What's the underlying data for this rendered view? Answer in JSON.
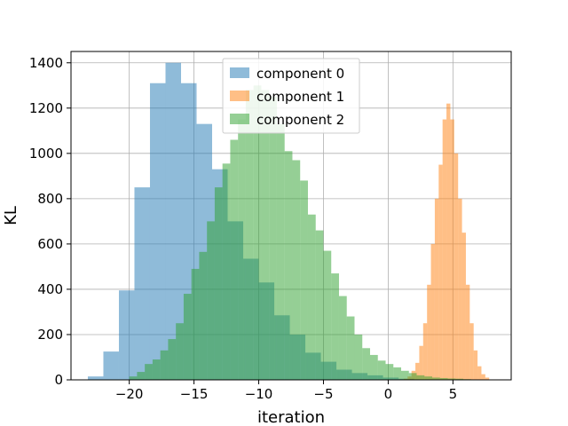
{
  "chart_data": {
    "type": "bar",
    "subtype": "histogram",
    "title": "",
    "xlabel": "iteration",
    "ylabel": "KL",
    "xlim": [
      -24.5,
      9.5
    ],
    "ylim": [
      0,
      1450
    ],
    "xticks": [
      -20,
      -15,
      -10,
      -5,
      0,
      5
    ],
    "yticks": [
      0,
      200,
      400,
      600,
      800,
      1000,
      1200,
      1400
    ],
    "grid": true,
    "legend_position": "top-center",
    "alpha": 0.5,
    "series": [
      {
        "name": "component 0",
        "color": "#1f77b4",
        "bin_start": -23.2,
        "bin_width": 1.2,
        "values": [
          15,
          125,
          395,
          850,
          1310,
          1400,
          1310,
          1130,
          930,
          700,
          535,
          430,
          285,
          200,
          120,
          80,
          45,
          30,
          20,
          10,
          5
        ]
      },
      {
        "name": "component 1",
        "color": "#ff7f0e",
        "bin_start": 1.2,
        "bin_width": 0.3,
        "values": [
          5,
          15,
          40,
          75,
          150,
          250,
          420,
          600,
          800,
          950,
          1150,
          1220,
          1150,
          1000,
          800,
          650,
          420,
          250,
          130,
          60,
          25,
          10
        ]
      },
      {
        "name": "component 2",
        "color": "#2ca02c",
        "bin_start": -20.0,
        "bin_width": 0.6,
        "values": [
          15,
          35,
          70,
          90,
          130,
          180,
          250,
          380,
          490,
          565,
          700,
          850,
          955,
          1060,
          1150,
          1280,
          1300,
          1280,
          1250,
          1130,
          1010,
          970,
          880,
          730,
          660,
          570,
          470,
          370,
          280,
          200,
          140,
          110,
          85,
          70,
          55,
          40,
          30,
          20,
          15,
          10,
          8,
          6,
          5,
          3,
          2
        ]
      }
    ]
  }
}
